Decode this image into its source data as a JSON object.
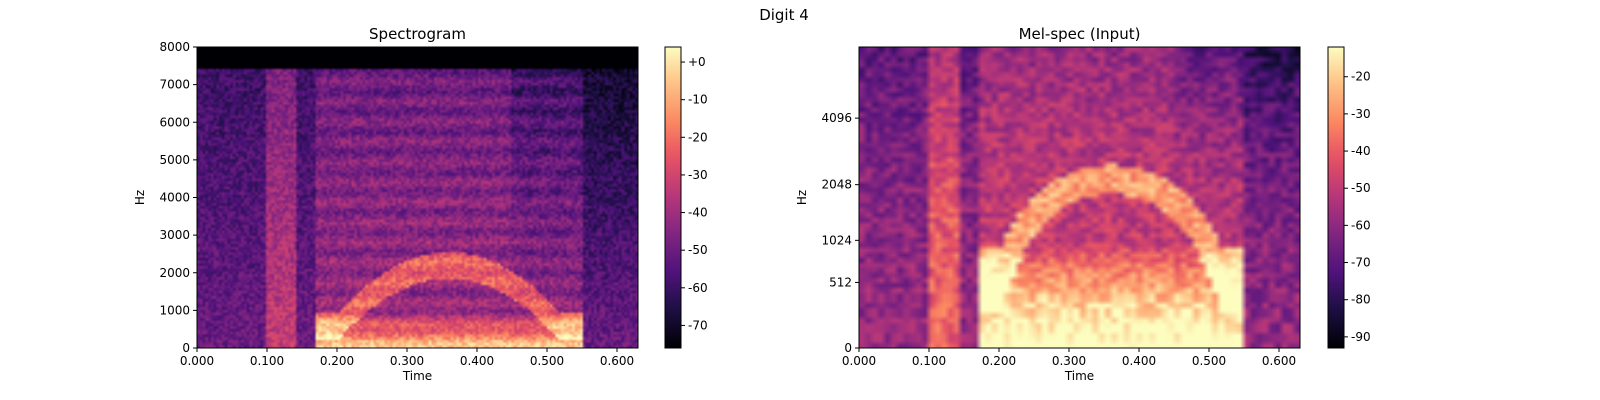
{
  "figure": {
    "title": "Digit 4"
  },
  "chart_data": [
    {
      "type": "heatmap",
      "title": "Spectrogram",
      "xlabel": "Time",
      "ylabel": "Hz",
      "x_ticks": [
        "0.000",
        "0.100",
        "0.200",
        "0.300",
        "0.400",
        "0.500",
        "0.600"
      ],
      "x_tick_values": [
        0,
        0.1,
        0.2,
        0.3,
        0.4,
        0.5,
        0.6
      ],
      "xlim": [
        0,
        0.63
      ],
      "y_ticks": [
        "0",
        "1000",
        "2000",
        "3000",
        "4000",
        "5000",
        "6000",
        "7000",
        "8000"
      ],
      "y_tick_values": [
        0,
        1000,
        2000,
        3000,
        4000,
        5000,
        6000,
        7000,
        8000
      ],
      "ylim": [
        0,
        8000
      ],
      "y_scale": "linear",
      "colormap": "magma",
      "colorbar": {
        "ticks": [
          "+0",
          "-10",
          "-20",
          "-30",
          "-40",
          "-50",
          "-60",
          "-70"
        ],
        "tick_values": [
          0,
          -10,
          -20,
          -30,
          -40,
          -50,
          -60,
          -70
        ],
        "range": [
          -76,
          4
        ]
      }
    },
    {
      "type": "heatmap",
      "title": "Mel-spec (Input)",
      "xlabel": "Time",
      "ylabel": "Hz",
      "x_ticks": [
        "0.000",
        "0.100",
        "0.200",
        "0.300",
        "0.400",
        "0.500",
        "0.600"
      ],
      "x_tick_values": [
        0,
        0.1,
        0.2,
        0.3,
        0.4,
        0.5,
        0.6
      ],
      "xlim": [
        0,
        0.63
      ],
      "y_ticks": [
        "0",
        "512",
        "1024",
        "2048",
        "4096"
      ],
      "y_tick_values": [
        0,
        512,
        1024,
        2048,
        4096
      ],
      "ylim": [
        0,
        8000
      ],
      "y_scale": "mel",
      "colormap": "magma",
      "colorbar": {
        "ticks": [
          "-20",
          "-30",
          "-40",
          "-50",
          "-60",
          "-70",
          "-80",
          "-90"
        ],
        "tick_values": [
          -20,
          -30,
          -40,
          -50,
          -60,
          -70,
          -80,
          -90
        ],
        "range": [
          -93,
          -12
        ]
      }
    }
  ]
}
